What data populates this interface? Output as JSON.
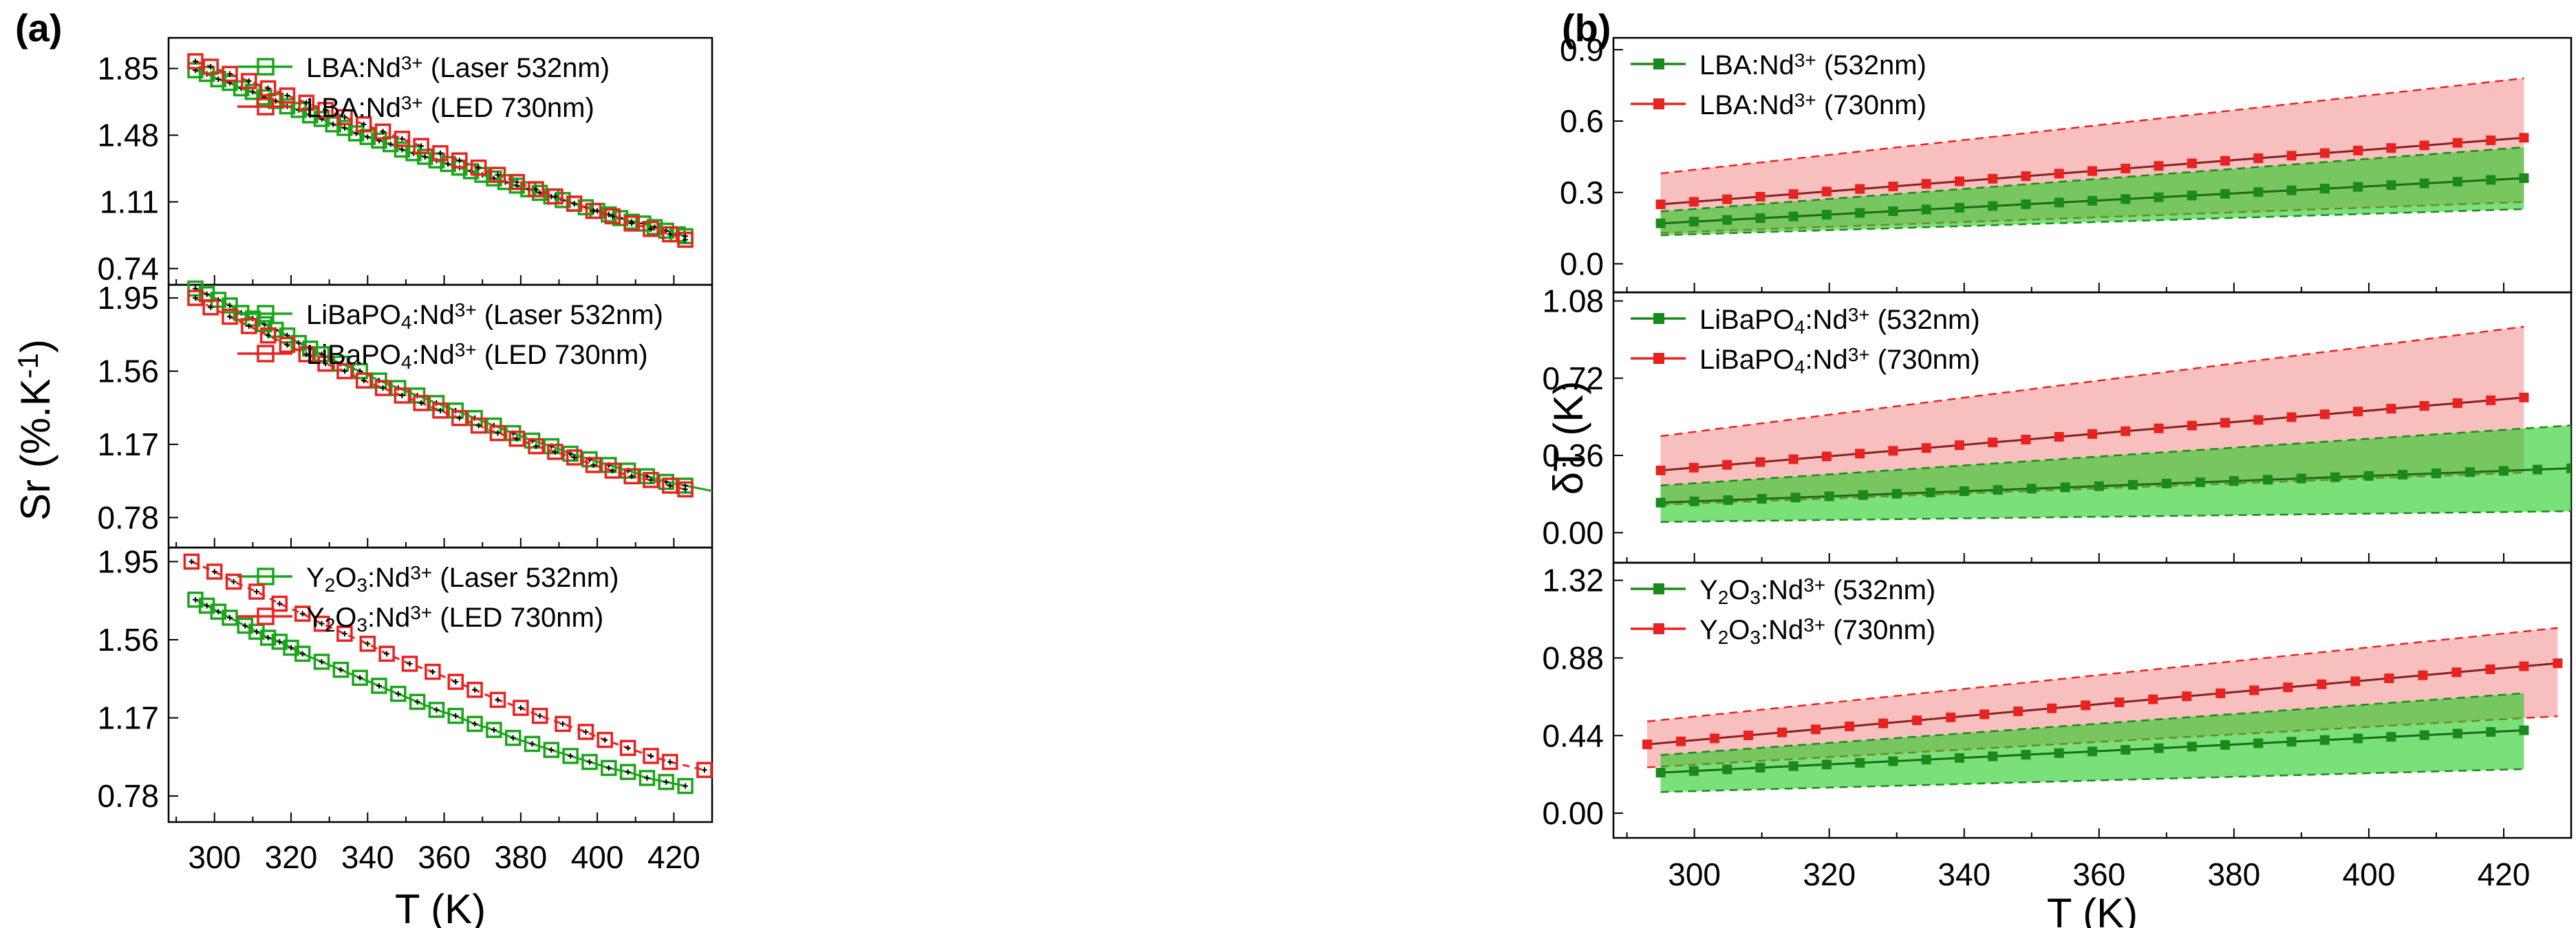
{
  "figure": {
    "panel_a_label": "(a)",
    "panel_b_label": "(b)"
  },
  "chart_data": [
    {
      "id": "a",
      "type": "line",
      "xlabel": "T (K)",
      "ylabel": "Sr (%.K⁻¹)",
      "xlim": [
        288,
        430
      ],
      "xticks": [
        300,
        320,
        340,
        360,
        380,
        400,
        420
      ],
      "subplots": [
        {
          "ylim": [
            0.65,
            2.02
          ],
          "yticks": [
            "0.74",
            "1.11",
            "1.48",
            "1.85"
          ],
          "legend_position": "top-right",
          "series": [
            {
              "name": "LBA:Nd³⁺ (Laser 532nm)",
              "color": "#1aa51a",
              "marker": "open-square",
              "x": [
                295,
                298,
                301,
                304,
                307,
                310,
                313,
                316,
                319,
                322,
                325,
                328,
                331,
                334,
                337,
                340,
                343,
                346,
                349,
                352,
                355,
                358,
                361,
                364,
                367,
                370,
                373,
                376,
                379,
                382,
                385,
                388,
                391,
                394,
                397,
                400,
                403,
                406,
                409,
                412,
                415,
                418,
                421,
                423
              ],
              "y": [
                1.84,
                1.82,
                1.79,
                1.77,
                1.74,
                1.72,
                1.69,
                1.67,
                1.64,
                1.62,
                1.59,
                1.57,
                1.54,
                1.52,
                1.49,
                1.47,
                1.45,
                1.43,
                1.4,
                1.38,
                1.36,
                1.34,
                1.32,
                1.3,
                1.28,
                1.26,
                1.24,
                1.22,
                1.2,
                1.18,
                1.16,
                1.14,
                1.12,
                1.1,
                1.08,
                1.06,
                1.04,
                1.02,
                1.0,
                0.99,
                0.97,
                0.95,
                0.93,
                0.92
              ]
            },
            {
              "name": "LBA:Nd³⁺ (LED 730nm)",
              "color": "#e8231f",
              "marker": "open-square",
              "x": [
                295,
                299,
                304,
                309,
                314,
                319,
                324,
                329,
                334,
                339,
                344,
                349,
                354,
                359,
                364,
                369,
                374,
                379,
                384,
                389,
                394,
                399,
                404,
                409,
                414,
                419,
                423
              ],
              "y": [
                1.89,
                1.86,
                1.82,
                1.78,
                1.74,
                1.7,
                1.66,
                1.62,
                1.58,
                1.54,
                1.5,
                1.46,
                1.42,
                1.38,
                1.34,
                1.3,
                1.26,
                1.22,
                1.18,
                1.14,
                1.1,
                1.06,
                1.03,
                0.99,
                0.96,
                0.93,
                0.9
              ]
            }
          ]
        },
        {
          "ylim": [
            0.62,
            2.02
          ],
          "yticks": [
            "0.78",
            "1.17",
            "1.56",
            "1.95"
          ],
          "legend_position": "top-right",
          "series": [
            {
              "name": "LiBaPO₄:Nd³⁺ (Laser 532nm)",
              "color": "#1aa51a",
              "marker": "open-square",
              "fit_to_x": 430,
              "x": [
                295,
                298,
                301,
                304,
                307,
                310,
                313,
                316,
                319,
                322,
                325,
                328,
                333,
                338,
                343,
                348,
                353,
                358,
                363,
                368,
                373,
                378,
                383,
                388,
                393,
                398,
                403,
                408,
                413,
                418,
                423
              ],
              "y": [
                2.0,
                1.97,
                1.94,
                1.91,
                1.87,
                1.84,
                1.81,
                1.78,
                1.75,
                1.71,
                1.68,
                1.65,
                1.6,
                1.56,
                1.51,
                1.47,
                1.43,
                1.39,
                1.35,
                1.31,
                1.27,
                1.23,
                1.19,
                1.16,
                1.12,
                1.09,
                1.06,
                1.03,
                1.0,
                0.97,
                0.95
              ]
            },
            {
              "name": "LiBaPO₄:Nd³⁺ (LED 730nm)",
              "color": "#e8231f",
              "marker": "open-square",
              "x": [
                295,
                299,
                304,
                309,
                314,
                319,
                324,
                329,
                334,
                339,
                344,
                349,
                354,
                359,
                364,
                369,
                374,
                379,
                384,
                389,
                394,
                399,
                404,
                409,
                414,
                419,
                423
              ],
              "y": [
                1.95,
                1.9,
                1.85,
                1.8,
                1.75,
                1.7,
                1.65,
                1.6,
                1.56,
                1.51,
                1.47,
                1.43,
                1.39,
                1.35,
                1.31,
                1.27,
                1.23,
                1.2,
                1.16,
                1.13,
                1.1,
                1.06,
                1.03,
                1.0,
                0.98,
                0.95,
                0.93
              ]
            }
          ]
        },
        {
          "ylim": [
            0.65,
            2.02
          ],
          "yticks": [
            "0.78",
            "1.17",
            "1.56",
            "1.95"
          ],
          "legend_position": "top-right",
          "series": [
            {
              "name": "Y₂O₃:Nd³⁺ (Laser 532nm)",
              "color": "#1aa51a",
              "marker": "open-square",
              "x": [
                295,
                298,
                301,
                304,
                308,
                311,
                314,
                317,
                320,
                323,
                328,
                333,
                338,
                343,
                348,
                353,
                358,
                363,
                368,
                373,
                378,
                383,
                388,
                393,
                398,
                403,
                408,
                413,
                418,
                423
              ],
              "y": [
                1.76,
                1.73,
                1.7,
                1.67,
                1.63,
                1.6,
                1.57,
                1.55,
                1.52,
                1.49,
                1.45,
                1.41,
                1.37,
                1.33,
                1.29,
                1.25,
                1.21,
                1.18,
                1.14,
                1.11,
                1.07,
                1.04,
                1.01,
                0.98,
                0.95,
                0.92,
                0.9,
                0.87,
                0.85,
                0.83
              ]
            },
            {
              "name": "Y₂O₃:Nd³⁺ (LED 730nm)",
              "color": "#e8231f",
              "marker": "open-square",
              "x": [
                294,
                300,
                305,
                311,
                317,
                323,
                328,
                334,
                340,
                345,
                351,
                357,
                363,
                368,
                374,
                380,
                385,
                391,
                397,
                402,
                408,
                414,
                419,
                428
              ],
              "y": [
                1.95,
                1.9,
                1.85,
                1.8,
                1.74,
                1.69,
                1.64,
                1.59,
                1.54,
                1.49,
                1.44,
                1.4,
                1.35,
                1.31,
                1.26,
                1.22,
                1.18,
                1.14,
                1.1,
                1.06,
                1.02,
                0.98,
                0.95,
                0.91
              ]
            }
          ]
        }
      ]
    },
    {
      "id": "b",
      "type": "line",
      "xlabel": "T (K)",
      "ylabel": "δT (K)",
      "xlim": [
        288,
        430
      ],
      "xticks": [
        300,
        320,
        340,
        360,
        380,
        400,
        420
      ],
      "subplots": [
        {
          "ylim": [
            -0.12,
            0.95
          ],
          "yticks": [
            "0.0",
            "0.3",
            "0.6",
            "0.9"
          ],
          "legend_position": "top-left",
          "series": [
            {
              "name": "LBA:Nd³⁺ (532nm)",
              "color": "#1a8a1a",
              "band_color": "#22cc22",
              "x0": 295,
              "x1": 423,
              "center": [
                0.17,
                0.36
              ],
              "upper": [
                0.22,
                0.49
              ],
              "lower": [
                0.12,
                0.23
              ]
            },
            {
              "name": "LBA:Nd³⁺ (730nm)",
              "color": "#e8231f",
              "band_color": "#f07070",
              "x0": 295,
              "x1": 423,
              "center": [
                0.25,
                0.53
              ],
              "upper": [
                0.38,
                0.78
              ],
              "lower": [
                0.13,
                0.26
              ]
            }
          ]
        },
        {
          "ylim": [
            -0.14,
            1.12
          ],
          "yticks": [
            "0.00",
            "0.36",
            "0.72",
            "1.08"
          ],
          "legend_position": "top-left",
          "series": [
            {
              "name": "LiBaPO₄:Nd³⁺ (532nm)",
              "color": "#1a8a1a",
              "band_color": "#22cc22",
              "x0": 295,
              "x1": 430,
              "center": [
                0.14,
                0.3
              ],
              "upper": [
                0.22,
                0.5
              ],
              "lower": [
                0.05,
                0.1
              ]
            },
            {
              "name": "LiBaPO₄:Nd³⁺ (730nm)",
              "color": "#e8231f",
              "band_color": "#f07070",
              "x0": 295,
              "x1": 423,
              "center": [
                0.29,
                0.63
              ],
              "upper": [
                0.45,
                0.96
              ],
              "lower": [
                0.13,
                0.28
              ]
            }
          ]
        },
        {
          "ylim": [
            -0.14,
            1.42
          ],
          "yticks": [
            "0.00",
            "0.44",
            "0.88",
            "1.32"
          ],
          "legend_position": "top-left",
          "series": [
            {
              "name": "Y₂O₃:Nd³⁺ (532nm)",
              "color": "#1a8a1a",
              "band_color": "#22cc22",
              "x0": 295,
              "x1": 423,
              "center": [
                0.23,
                0.47
              ],
              "upper": [
                0.33,
                0.68
              ],
              "lower": [
                0.12,
                0.25
              ]
            },
            {
              "name": "Y₂O₃:Nd³⁺ (730nm)",
              "color": "#e8231f",
              "band_color": "#f07070",
              "x0": 293,
              "x1": 428,
              "center": [
                0.39,
                0.85
              ],
              "upper": [
                0.52,
                1.05
              ],
              "lower": [
                0.26,
                0.55
              ]
            }
          ]
        }
      ]
    }
  ]
}
